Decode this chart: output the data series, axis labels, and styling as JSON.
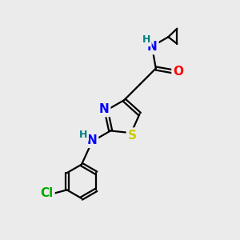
{
  "bg_color": "#ebebeb",
  "bond_color": "#000000",
  "atom_colors": {
    "N": "#0000ff",
    "S": "#cccc00",
    "O": "#ff0000",
    "Cl": "#00aa00",
    "H_label": "#008080",
    "C": "#000000"
  },
  "font_size_atom": 11,
  "font_size_small": 9,
  "fig_size": [
    3.0,
    3.0
  ],
  "dpi": 100
}
